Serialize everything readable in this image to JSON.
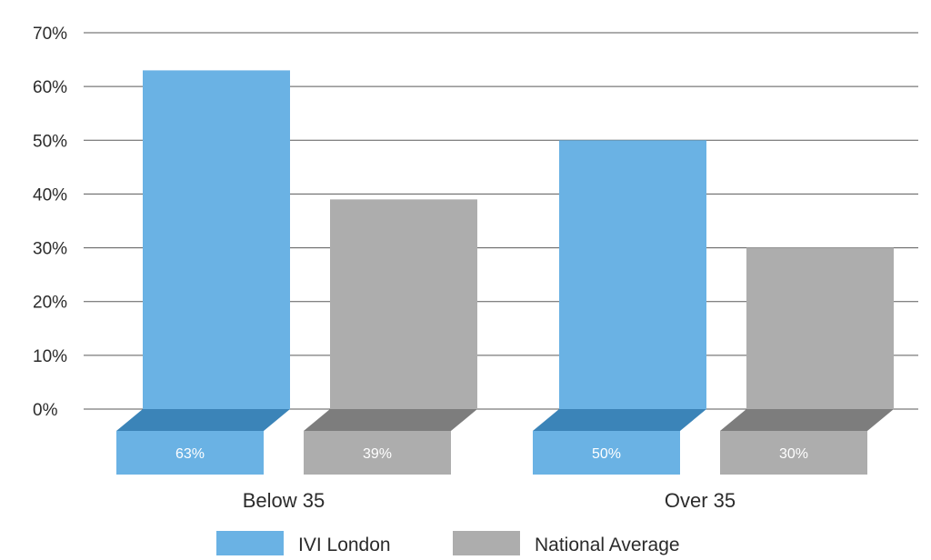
{
  "chart_data": {
    "type": "bar",
    "categories": [
      "Below 35",
      "Over 35"
    ],
    "series": [
      {
        "name": "IVI London",
        "values": [
          63,
          50
        ],
        "labels": [
          "63%",
          "50%"
        ],
        "color": "#6ab2e4",
        "shade": "#3b84b8"
      },
      {
        "name": "National Average",
        "values": [
          39,
          30
        ],
        "labels": [
          "39%",
          "30%"
        ],
        "color": "#adadad",
        "shade": "#7d7d7d"
      }
    ],
    "y_ticks": [
      "0%",
      "10%",
      "20%",
      "30%",
      "40%",
      "50%",
      "60%",
      "70%"
    ],
    "ylim": [
      0,
      70
    ],
    "grid": true,
    "legend": "bottom-center"
  }
}
